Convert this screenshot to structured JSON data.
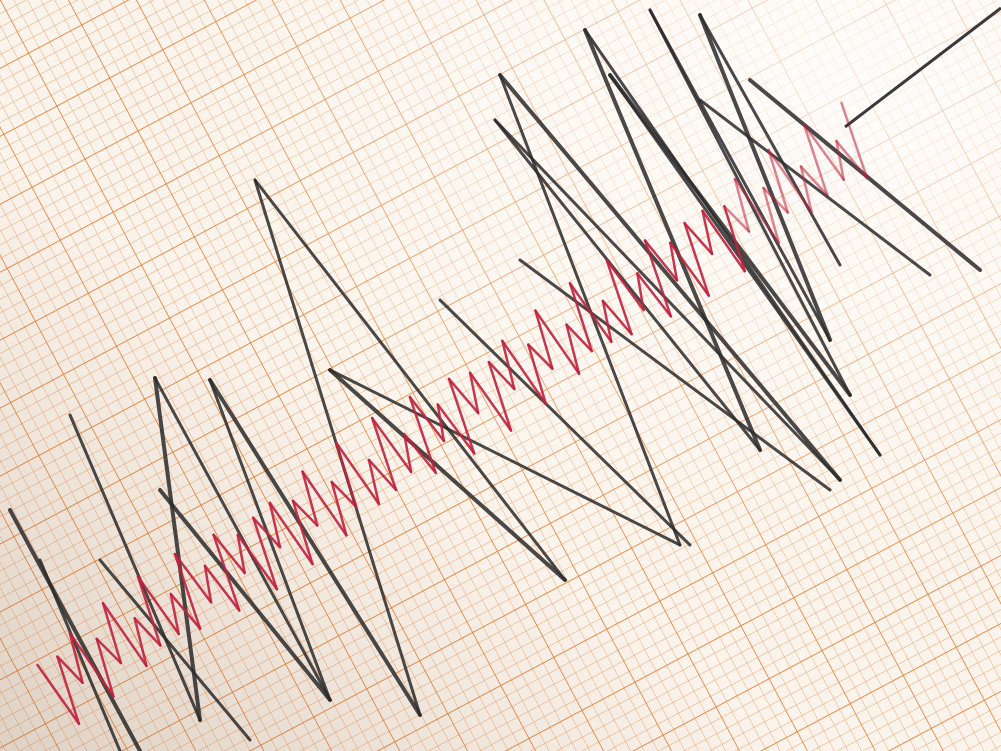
{
  "colors": {
    "paper": "#fbf4ec",
    "grid_minor": "#f0a36a",
    "grid_major": "#e57a2c",
    "ink_black": "#2b2b2b",
    "ink_red": "#c0223f",
    "stylus": "#3a3a3a"
  },
  "subject": "seismograph-recording"
}
